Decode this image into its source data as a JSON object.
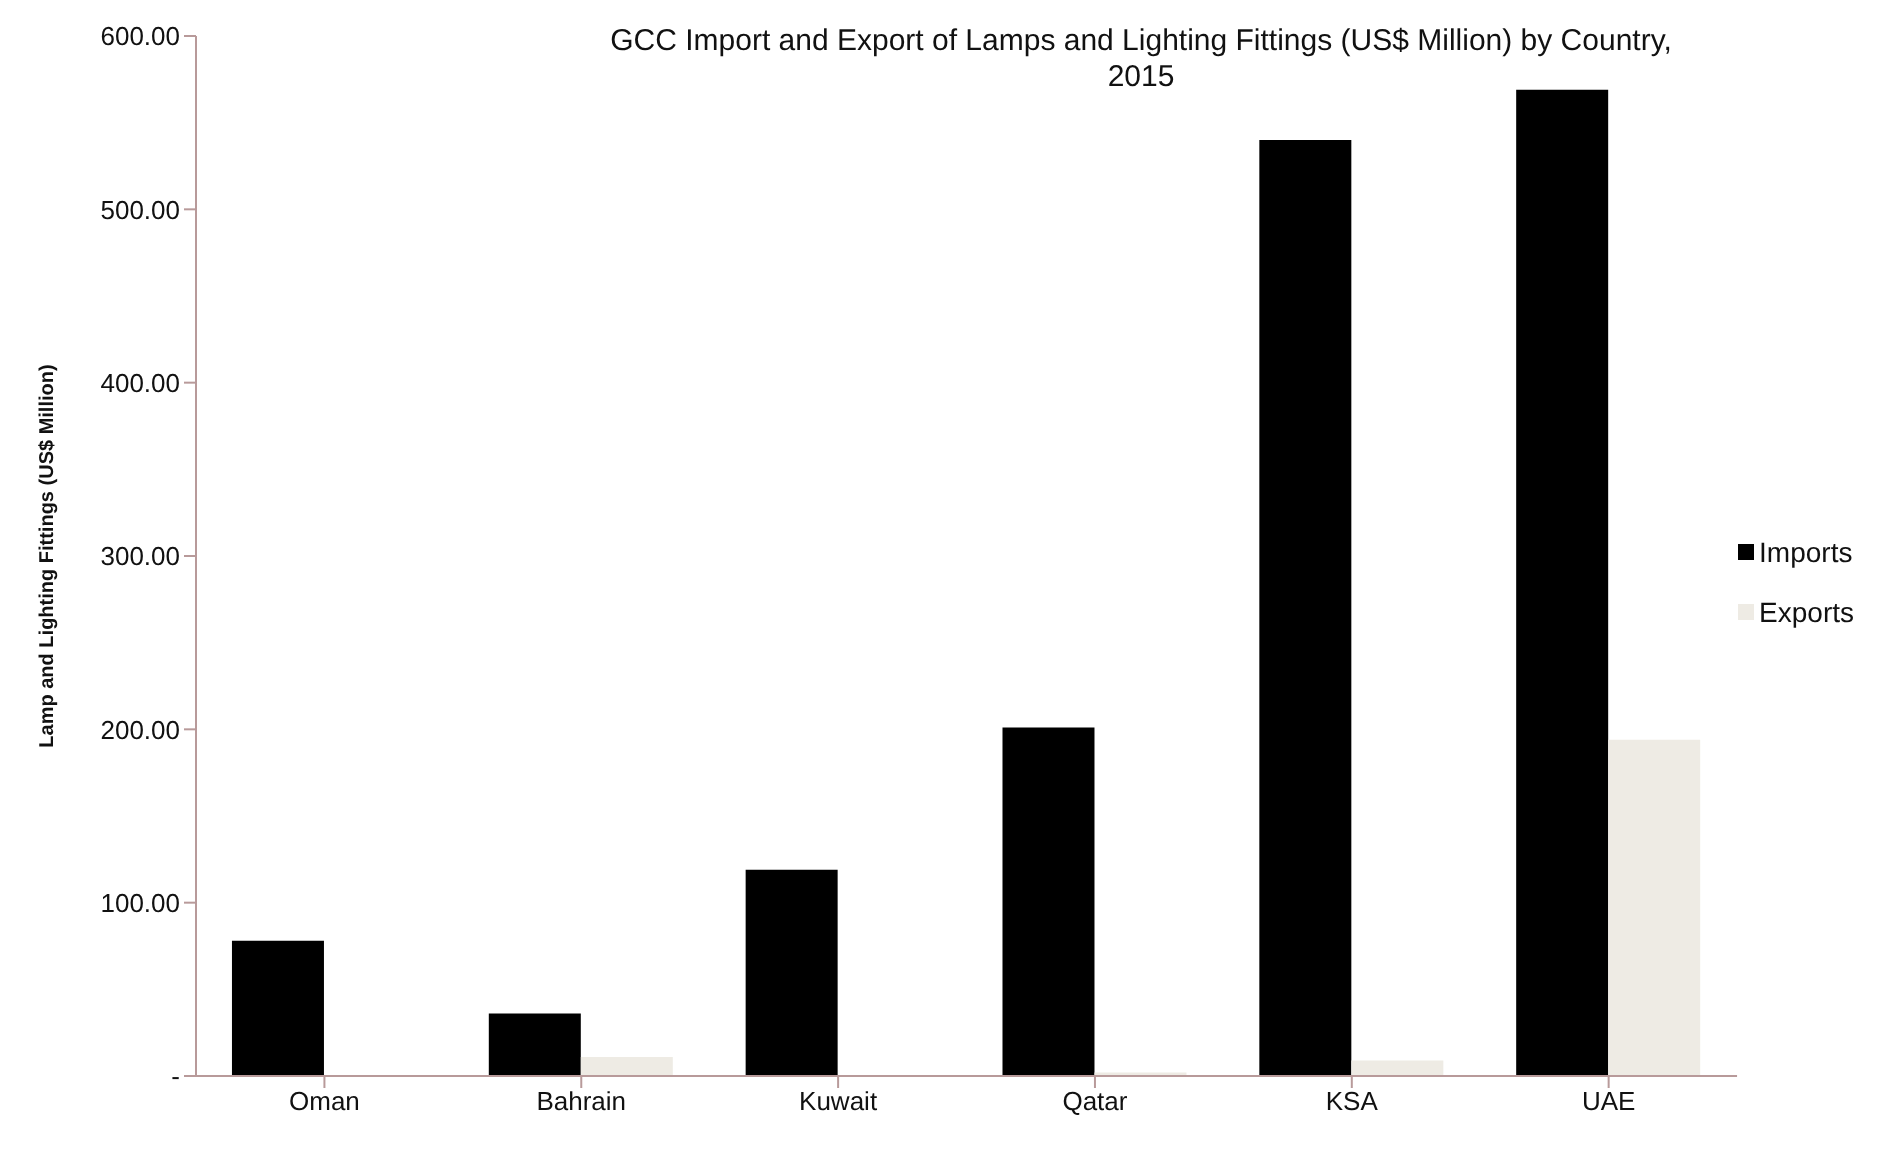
{
  "chart_data": {
    "type": "bar",
    "title": "GCC Import and Export of Lamps and Lighting Fittings (US$ Million) by Country, 2015",
    "ylabel": "Lamp and Lighting Fittings  (US$ Million)",
    "categories": [
      "Oman",
      "Bahrain",
      "Kuwait",
      "Qatar",
      "KSA",
      "UAE"
    ],
    "series": [
      {
        "name": "Imports",
        "color": "#000000",
        "values": [
          78,
          36,
          119,
          201,
          540,
          569
        ]
      },
      {
        "name": "Exports",
        "color": "#eeebe4",
        "values": [
          null,
          11,
          null,
          2,
          9,
          194
        ]
      }
    ],
    "ylim": [
      0,
      600
    ],
    "yticks": [
      {
        "value": 0,
        "label": "-"
      },
      {
        "value": 100,
        "label": "100.00"
      },
      {
        "value": 200,
        "label": "200.00"
      },
      {
        "value": 300,
        "label": "300.00"
      },
      {
        "value": 400,
        "label": "400.00"
      },
      {
        "value": 500,
        "label": "500.00"
      },
      {
        "value": 600,
        "label": "600.00"
      }
    ],
    "grid": false,
    "legend": "right"
  }
}
